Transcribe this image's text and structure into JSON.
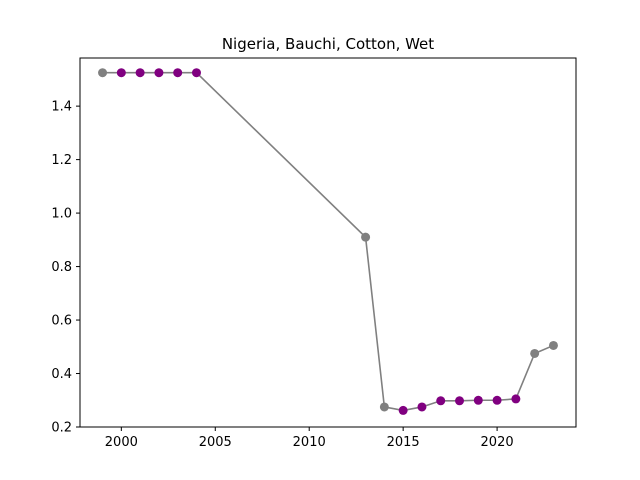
{
  "chart_data": {
    "type": "line",
    "title": "Nigeria, Bauchi, Cotton, Wet",
    "xlabel": "",
    "ylabel": "",
    "xlim": [
      1997.8,
      2024.2
    ],
    "ylim": [
      0.2,
      1.58
    ],
    "xticks": [
      2000,
      2005,
      2010,
      2015,
      2020
    ],
    "yticks": [
      0.2,
      0.4,
      0.6,
      0.8,
      1.0,
      1.2,
      1.4
    ],
    "ytick_labels": [
      "0.2",
      "0.4",
      "0.6",
      "0.8",
      "1.0",
      "1.2",
      "1.4"
    ],
    "grid": false,
    "line_color": "#808080",
    "point_colors": {
      "actual": "#800080",
      "estimated": "#808080"
    },
    "points": [
      {
        "x": 1999,
        "y": 1.525,
        "kind": "estimated"
      },
      {
        "x": 2000,
        "y": 1.525,
        "kind": "actual"
      },
      {
        "x": 2001,
        "y": 1.525,
        "kind": "actual"
      },
      {
        "x": 2002,
        "y": 1.525,
        "kind": "actual"
      },
      {
        "x": 2003,
        "y": 1.525,
        "kind": "actual"
      },
      {
        "x": 2004,
        "y": 1.525,
        "kind": "actual"
      },
      {
        "x": 2013,
        "y": 0.91,
        "kind": "estimated"
      },
      {
        "x": 2014,
        "y": 0.275,
        "kind": "estimated"
      },
      {
        "x": 2015,
        "y": 0.262,
        "kind": "actual"
      },
      {
        "x": 2016,
        "y": 0.275,
        "kind": "actual"
      },
      {
        "x": 2017,
        "y": 0.298,
        "kind": "actual"
      },
      {
        "x": 2018,
        "y": 0.298,
        "kind": "actual"
      },
      {
        "x": 2019,
        "y": 0.3,
        "kind": "actual"
      },
      {
        "x": 2020,
        "y": 0.3,
        "kind": "actual"
      },
      {
        "x": 2021,
        "y": 0.305,
        "kind": "actual"
      },
      {
        "x": 2022,
        "y": 0.475,
        "kind": "estimated"
      },
      {
        "x": 2023,
        "y": 0.505,
        "kind": "estimated"
      }
    ]
  }
}
